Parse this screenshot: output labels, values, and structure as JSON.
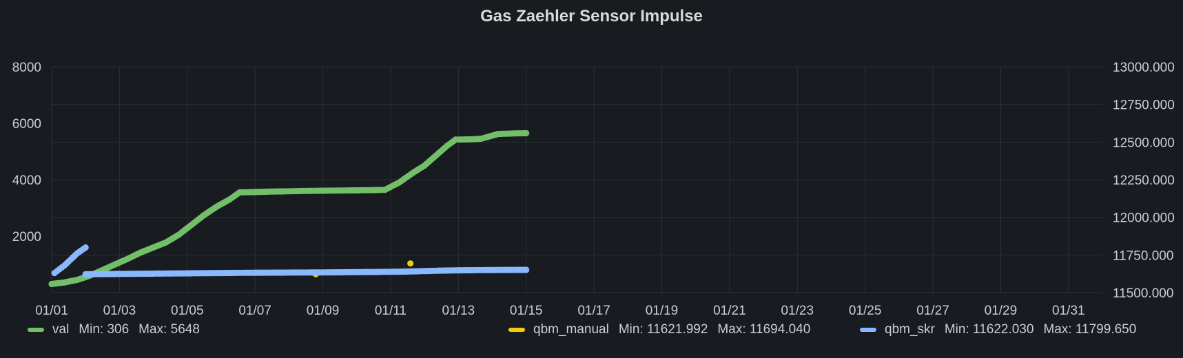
{
  "panel": {
    "title": "Gas Zaehler Sensor Impulse"
  },
  "legend": [
    {
      "name": "val",
      "color": "#73bf69",
      "min_label": "Min: 306",
      "max_label": "Max: 5648"
    },
    {
      "name": "qbm_manual",
      "color": "#f2cc0c",
      "min_label": "Min: 11621.992",
      "max_label": "Max: 11694.040"
    },
    {
      "name": "qbm_skr",
      "color": "#8ab8ff",
      "min_label": "Min: 11622.030",
      "max_label": "Max: 11799.650"
    }
  ],
  "chart_data": {
    "type": "scatter",
    "title": "Gas Zaehler Sensor Impulse",
    "x_axis": {
      "type": "date",
      "range": [
        "01/01",
        "02/01"
      ],
      "tick_labels": [
        "01/01",
        "01/03",
        "01/05",
        "01/07",
        "01/09",
        "01/11",
        "01/13",
        "01/15",
        "01/17",
        "01/19",
        "01/21",
        "01/23",
        "01/25",
        "01/27",
        "01/29",
        "01/31"
      ]
    },
    "y_axis_left": {
      "range": [
        0,
        8000
      ],
      "ticks": [
        2000,
        4000,
        6000,
        8000
      ],
      "tick_labels": [
        "2000",
        "4000",
        "6000",
        "8000"
      ]
    },
    "y_axis_right": {
      "range": [
        11500,
        13000
      ],
      "ticks": [
        11500,
        11750,
        12000,
        12250,
        12500,
        12750,
        13000
      ],
      "tick_labels": [
        "11500.000",
        "11750.000",
        "12000.000",
        "12250.000",
        "12500.000",
        "12750.000",
        "13000.000"
      ]
    },
    "grid": true,
    "legend_position": "bottom",
    "series": [
      {
        "name": "val",
        "axis": "left",
        "color": "#73bf69",
        "points": [
          [
            "01/01 00:00",
            306
          ],
          [
            "01/01 09:00",
            360
          ],
          [
            "01/01 18:00",
            450
          ],
          [
            "01/02 03:00",
            600
          ],
          [
            "01/02 12:00",
            800
          ],
          [
            "01/02 21:00",
            1000
          ],
          [
            "01/03 06:00",
            1200
          ],
          [
            "01/03 15:00",
            1420
          ],
          [
            "01/04 00:00",
            1600
          ],
          [
            "01/04 09:00",
            1780
          ],
          [
            "01/04 18:00",
            2050
          ],
          [
            "01/05 03:00",
            2400
          ],
          [
            "01/05 12:00",
            2750
          ],
          [
            "01/05 21:00",
            3050
          ],
          [
            "01/06 06:00",
            3300
          ],
          [
            "01/06 13:00",
            3550
          ],
          [
            "01/06 22:00",
            3560
          ],
          [
            "01/07 12:00",
            3580
          ],
          [
            "01/08 00:00",
            3590
          ],
          [
            "01/08 10:00",
            3600
          ],
          [
            "01/09 00:00",
            3610
          ],
          [
            "01/09 20:00",
            3620
          ],
          [
            "01/10 10:00",
            3630
          ],
          [
            "01/10 20:00",
            3640
          ],
          [
            "01/11 06:00",
            3900
          ],
          [
            "01/11 16:00",
            4250
          ],
          [
            "01/12 00:00",
            4500
          ],
          [
            "01/12 08:00",
            4850
          ],
          [
            "01/12 16:00",
            5200
          ],
          [
            "01/12 22:00",
            5420
          ],
          [
            "01/13 08:00",
            5430
          ],
          [
            "01/13 16:00",
            5450
          ],
          [
            "01/14 04:00",
            5620
          ],
          [
            "01/14 16:00",
            5640
          ],
          [
            "01/15 00:00",
            5648
          ]
        ]
      },
      {
        "name": "qbm_manual",
        "axis": "right",
        "color": "#f2cc0c",
        "points": [
          [
            "01/08 19:00",
            11621.992
          ],
          [
            "01/11 14:00",
            11694.04
          ]
        ]
      },
      {
        "name": "qbm_skr",
        "axis": "right",
        "color": "#8ab8ff",
        "points": [
          [
            "01/01 02:00",
            11630
          ],
          [
            "01/01 09:00",
            11680
          ],
          [
            "01/01 18:00",
            11760
          ],
          [
            "01/02 00:00",
            11799.65
          ],
          [
            "01/02 00:00",
            11622.03
          ],
          [
            "01/03 00:00",
            11624
          ],
          [
            "01/04 00:00",
            11626
          ],
          [
            "01/05 00:00",
            11628
          ],
          [
            "01/06 00:00",
            11630
          ],
          [
            "01/06 12:00",
            11631
          ],
          [
            "01/07 00:00",
            11632
          ],
          [
            "01/08 00:00",
            11633
          ],
          [
            "01/09 00:00",
            11634
          ],
          [
            "01/09 12:00",
            11635
          ],
          [
            "01/10 00:00",
            11636
          ],
          [
            "01/10 12:00",
            11637
          ],
          [
            "01/11 00:00",
            11638
          ],
          [
            "01/11 12:00",
            11640
          ],
          [
            "01/12 00:00",
            11643
          ],
          [
            "01/12 12:00",
            11646
          ],
          [
            "01/13 00:00",
            11648
          ],
          [
            "01/13 12:00",
            11649
          ],
          [
            "01/14 00:00",
            11650
          ],
          [
            "01/15 00:00",
            11651
          ]
        ]
      }
    ]
  }
}
